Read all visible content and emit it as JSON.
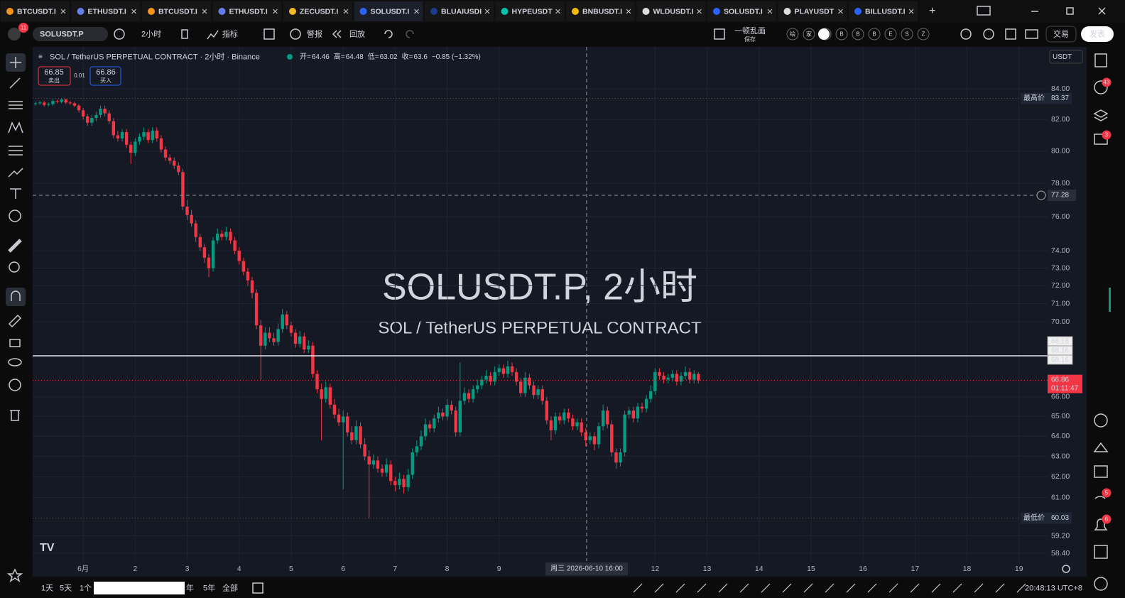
{
  "tabs": [
    "BTCUSDT.I",
    "ETHUSDT.I",
    "BTCUSDT.I",
    "ETHUSDT.I",
    "ZECUSDT.I",
    "SOLUSDT.I",
    "BLUAIUSDI",
    "HYPEUSDT",
    "BNBUSDT.I",
    "WLDUSDT.I",
    "SOLUSDT.I",
    "PLAYUSDT",
    "BILLUSDT.I"
  ],
  "toolbar": {
    "symbol": "SOLUSDT.P",
    "interval": "2小时",
    "indicators": "指标",
    "alert": "警报",
    "replay": "回放",
    "layout_name": "一顿乱画",
    "save": "保存",
    "chips": [
      "绘",
      "家",
      "资",
      "B",
      "B",
      "B",
      "E",
      "S",
      "Z"
    ],
    "trade": "交易",
    "publish": "发表",
    "avatar_badge": "11"
  },
  "legend": {
    "symbol": "SOL / TetherUS PERPETUAL CONTRACT · 2小时 · Binance",
    "ohlc": [
      {
        "label": "开=",
        "value": 64.46
      },
      {
        "label": "高=",
        "value": 64.48
      },
      {
        "label": "低=",
        "value": 63.02
      },
      {
        "label": "收=",
        "value": 63.6
      }
    ],
    "change": "−0.85 (−1.32%)"
  },
  "order": {
    "sell_price": 66.85,
    "sell_label": "卖出",
    "spread": 0.01,
    "buy_price": 66.86,
    "buy_label": "买入"
  },
  "watermark": {
    "title": "SOLUSDT.P, 2小时",
    "subtitle": "SOL / TetherUS PERPETUAL CONTRACT"
  },
  "currency": "USDT",
  "chart_data": {
    "type": "candlestick",
    "up_color": "#089981",
    "down_color": "#f23645",
    "log_scale": true,
    "ylim": [
      57.34,
      86.8
    ],
    "yticks": [
      {
        "value": 84,
        "label": "84.00"
      },
      {
        "value": 82,
        "label": "82.00"
      },
      {
        "value": 80,
        "label": "80.00"
      },
      {
        "value": 78,
        "label": "78.00"
      },
      {
        "value": 76,
        "label": "76.00"
      },
      {
        "value": 74,
        "label": "74.00"
      },
      {
        "value": 73,
        "label": "73.00"
      },
      {
        "value": 72,
        "label": "72.00"
      },
      {
        "value": 71,
        "label": "71.00"
      },
      {
        "value": 70,
        "label": "70.00"
      },
      {
        "value": 66,
        "label": "66.00"
      },
      {
        "value": 65,
        "label": "65.00"
      },
      {
        "value": 64,
        "label": "64.00"
      },
      {
        "value": 63,
        "label": "63.00"
      },
      {
        "value": 62,
        "label": "62.00"
      },
      {
        "value": 61,
        "label": "61.00"
      },
      {
        "value": 59.2,
        "label": "59.20"
      },
      {
        "value": 58.4,
        "label": "58.40"
      }
    ],
    "xlim": [
      -0.66,
      233.6
    ],
    "xticks": [
      {
        "value": 11,
        "label": "6月"
      },
      {
        "value": 23,
        "label": "2"
      },
      {
        "value": 35,
        "label": "3"
      },
      {
        "value": 47,
        "label": "4"
      },
      {
        "value": 59,
        "label": "5"
      },
      {
        "value": 71,
        "label": "6"
      },
      {
        "value": 83,
        "label": "7"
      },
      {
        "value": 95,
        "label": "8"
      },
      {
        "value": 107,
        "label": "9"
      },
      {
        "value": 143,
        "label": "12"
      },
      {
        "value": 155,
        "label": "13"
      },
      {
        "value": 167,
        "label": "14"
      },
      {
        "value": 179,
        "label": "15"
      },
      {
        "value": 191,
        "label": "16"
      },
      {
        "value": 203,
        "label": "17"
      },
      {
        "value": 215,
        "label": "18"
      },
      {
        "value": 227,
        "label": "19"
      }
    ],
    "grid": true,
    "open": [
      83.0,
      83.05,
      83.1,
      82.95,
      83.0,
      83.2,
      83.15,
      83.3,
      83.1,
      83.05,
      82.9,
      82.6,
      82.2,
      81.8,
      82.1,
      82.3,
      82.7,
      82.4,
      81.9,
      81.0,
      80.8,
      81.2,
      80.4,
      79.9,
      80.6,
      80.9,
      81.2,
      80.7,
      81.3,
      80.8,
      80.1,
      79.6,
      79.4,
      79.1,
      78.7,
      76.6,
      76.1,
      75.6,
      74.8,
      74.2,
      73.6,
      73.0,
      74.6,
      75.0,
      74.8,
      75.1,
      74.6,
      74.0,
      73.4,
      72.8,
      72.3,
      71.6,
      69.8,
      68.7,
      69.4,
      69.1,
      68.9,
      69.6,
      70.4,
      69.8,
      69.4,
      68.8,
      69.2,
      68.5,
      68.7,
      67.2,
      66.4,
      65.9,
      66.5,
      65.6,
      65.1,
      64.7,
      65.0,
      64.2,
      63.8,
      64.5,
      63.6,
      63.0,
      62.6,
      62.8,
      62.4,
      62.2,
      62.6,
      61.8,
      61.6,
      61.9,
      61.5,
      62.1,
      63.2,
      63.5,
      64.0,
      64.6,
      64.4,
      64.9,
      65.2,
      65.0,
      65.6,
      65.3,
      64.2,
      65.8,
      66.2,
      65.9,
      66.4,
      66.6,
      66.9,
      67.1,
      66.8,
      67.3,
      67.5,
      67.2,
      67.6,
      67.3,
      66.8,
      66.2,
      67.0,
      66.6,
      66.1,
      66.4,
      65.8,
      64.8,
      64.3,
      65.0,
      64.8,
      65.2,
      64.9,
      64.5,
      64.7,
      64.2,
      63.8,
      64.0,
      63.6,
      64.5,
      65.3,
      64.6,
      63.2,
      62.7,
      63.2,
      65.1,
      65.3,
      64.9,
      65.5,
      65.4,
      65.9,
      66.3,
      67.3,
      67.1,
      66.9,
      67.0,
      67.2,
      66.8,
      67.1,
      67.3,
      66.9,
      67.2
    ],
    "high": [
      83.15,
      83.2,
      83.2,
      83.1,
      83.3,
      83.28,
      83.37,
      83.35,
      83.2,
      83.15,
      83.0,
      82.75,
      82.35,
      82.3,
      82.5,
      82.9,
      82.9,
      82.6,
      82.1,
      81.3,
      81.4,
      81.4,
      80.6,
      80.8,
      81.1,
      81.5,
      81.4,
      81.5,
      81.5,
      81.0,
      80.3,
      79.8,
      79.6,
      79.3,
      78.9,
      77.0,
      76.4,
      75.8,
      75.0,
      74.4,
      73.8,
      74.8,
      75.3,
      75.2,
      75.4,
      75.3,
      74.8,
      74.2,
      73.6,
      73.0,
      72.5,
      71.8,
      70.1,
      69.7,
      69.7,
      69.4,
      69.9,
      70.7,
      70.6,
      70.0,
      69.6,
      69.5,
      69.4,
      69.0,
      68.9,
      67.4,
      66.7,
      66.8,
      66.7,
      65.9,
      65.4,
      65.3,
      65.2,
      64.5,
      64.8,
      64.7,
      63.9,
      63.3,
      63.1,
      63.0,
      62.6,
      62.9,
      62.8,
      62.0,
      62.2,
      62.1,
      62.4,
      63.4,
      63.8,
      64.3,
      64.9,
      64.8,
      65.1,
      65.5,
      65.4,
      65.9,
      65.8,
      65.5,
      67.8,
      66.5,
      66.4,
      66.6,
      66.9,
      67.1,
      67.4,
      67.3,
      67.6,
      67.7,
      67.7,
      67.9,
      67.8,
      67.5,
      67.0,
      67.3,
      67.2,
      66.8,
      66.6,
      66.6,
      66.0,
      65.0,
      65.2,
      65.2,
      65.4,
      65.4,
      65.1,
      64.9,
      64.9,
      64.4,
      64.2,
      64.2,
      64.7,
      65.6,
      65.5,
      64.8,
      63.4,
      63.4,
      65.3,
      65.5,
      65.5,
      65.7,
      65.7,
      66.1,
      66.6,
      67.5,
      67.5,
      67.3,
      67.2,
      67.4,
      67.4,
      67.3,
      67.6,
      67.5,
      67.4,
      67.3
    ],
    "low": [
      82.9,
      82.95,
      82.85,
      82.85,
      82.9,
      83.05,
      83.05,
      83.0,
      82.95,
      82.8,
      82.45,
      82.0,
      81.6,
      81.6,
      81.9,
      82.1,
      82.2,
      81.7,
      80.8,
      80.6,
      80.6,
      80.2,
      79.2,
      79.7,
      80.4,
      80.7,
      80.5,
      80.5,
      80.6,
      79.9,
      79.4,
      79.2,
      78.9,
      78.5,
      76.4,
      75.8,
      75.4,
      74.5,
      74.0,
      73.3,
      72.5,
      72.8,
      74.4,
      74.6,
      74.6,
      74.4,
      73.8,
      73.2,
      72.6,
      72.0,
      71.3,
      69.6,
      66.9,
      68.5,
      68.9,
      68.7,
      68.7,
      69.4,
      69.6,
      69.2,
      68.6,
      68.6,
      68.3,
      68.3,
      67.0,
      66.2,
      63.8,
      65.7,
      65.4,
      64.9,
      64.5,
      61.4,
      64.0,
      63.6,
      63.6,
      63.4,
      62.8,
      60.03,
      62.4,
      62.2,
      62.0,
      62.0,
      61.6,
      61.3,
      61.4,
      61.2,
      61.3,
      61.9,
      63.0,
      63.3,
      63.8,
      64.2,
      64.2,
      64.7,
      64.8,
      64.8,
      65.1,
      64.0,
      64.0,
      65.6,
      65.7,
      65.7,
      66.2,
      66.4,
      66.7,
      66.6,
      66.6,
      67.1,
      67.0,
      67.0,
      67.1,
      66.6,
      66.0,
      66.0,
      66.4,
      65.9,
      65.9,
      65.6,
      64.6,
      63.8,
      64.1,
      64.6,
      64.6,
      64.7,
      64.3,
      64.3,
      64.0,
      63.5,
      63.6,
      63.3,
      63.4,
      64.3,
      64.4,
      63.0,
      62.4,
      62.5,
      63.0,
      64.9,
      64.7,
      64.7,
      65.2,
      65.2,
      65.7,
      66.1,
      66.9,
      66.7,
      66.7,
      66.8,
      66.6,
      66.6,
      66.9,
      66.7,
      66.7,
      66.7
    ],
    "close": [
      83.05,
      83.1,
      82.95,
      83.0,
      83.2,
      83.15,
      83.3,
      83.1,
      83.05,
      82.9,
      82.6,
      82.2,
      81.8,
      82.1,
      82.3,
      82.7,
      82.4,
      81.9,
      81.0,
      80.8,
      81.2,
      80.4,
      79.9,
      80.6,
      80.9,
      81.2,
      80.7,
      81.3,
      80.8,
      80.1,
      79.6,
      79.4,
      79.1,
      78.7,
      76.6,
      76.1,
      75.6,
      74.8,
      74.2,
      73.6,
      73.0,
      74.6,
      75.0,
      74.8,
      75.1,
      74.6,
      74.0,
      73.4,
      72.8,
      72.3,
      71.6,
      69.8,
      68.7,
      69.4,
      69.1,
      68.9,
      69.6,
      70.4,
      69.8,
      69.4,
      68.8,
      69.2,
      68.5,
      68.7,
      67.2,
      66.4,
      65.9,
      66.5,
      65.6,
      65.1,
      64.7,
      65.0,
      64.2,
      63.8,
      64.5,
      63.6,
      63.0,
      62.6,
      62.8,
      62.4,
      62.2,
      62.6,
      61.8,
      61.6,
      61.9,
      61.5,
      62.1,
      63.2,
      63.5,
      64.0,
      64.6,
      64.4,
      64.9,
      65.2,
      65.0,
      65.6,
      65.3,
      64.2,
      65.8,
      66.2,
      65.9,
      66.4,
      66.6,
      66.9,
      67.1,
      66.8,
      67.3,
      67.5,
      67.2,
      67.6,
      67.3,
      66.8,
      66.2,
      67.0,
      66.6,
      66.1,
      66.4,
      65.8,
      64.8,
      64.3,
      65.0,
      64.8,
      65.2,
      64.9,
      64.5,
      64.7,
      64.2,
      63.8,
      64.0,
      63.6,
      64.5,
      65.3,
      64.6,
      63.2,
      62.7,
      63.2,
      65.1,
      65.3,
      64.9,
      65.5,
      65.4,
      65.9,
      66.3,
      67.3,
      67.1,
      66.9,
      67.0,
      67.2,
      66.8,
      67.1,
      67.3,
      66.9,
      67.2,
      66.86
    ],
    "extremes": [
      {
        "label": "最高价",
        "value": 83.37
      },
      {
        "label": "最低价",
        "value": 60.03
      }
    ],
    "horizontal_line": [
      68.16,
      68.16,
      68.16
    ],
    "last_price": {
      "value": 66.86,
      "countdown": "01:11:47"
    },
    "crosshair": {
      "x": 127.2,
      "y": 77.28,
      "label": "周三 2026-06-10 16:00"
    }
  },
  "bottom_bar": {
    "ranges": [
      "1天",
      "5天",
      "1个",
      "年",
      "5年",
      "全部"
    ],
    "clock": "20:48:13 UTC+8"
  },
  "sidebar_badges": [
    "43",
    "3",
    "5",
    "6"
  ]
}
